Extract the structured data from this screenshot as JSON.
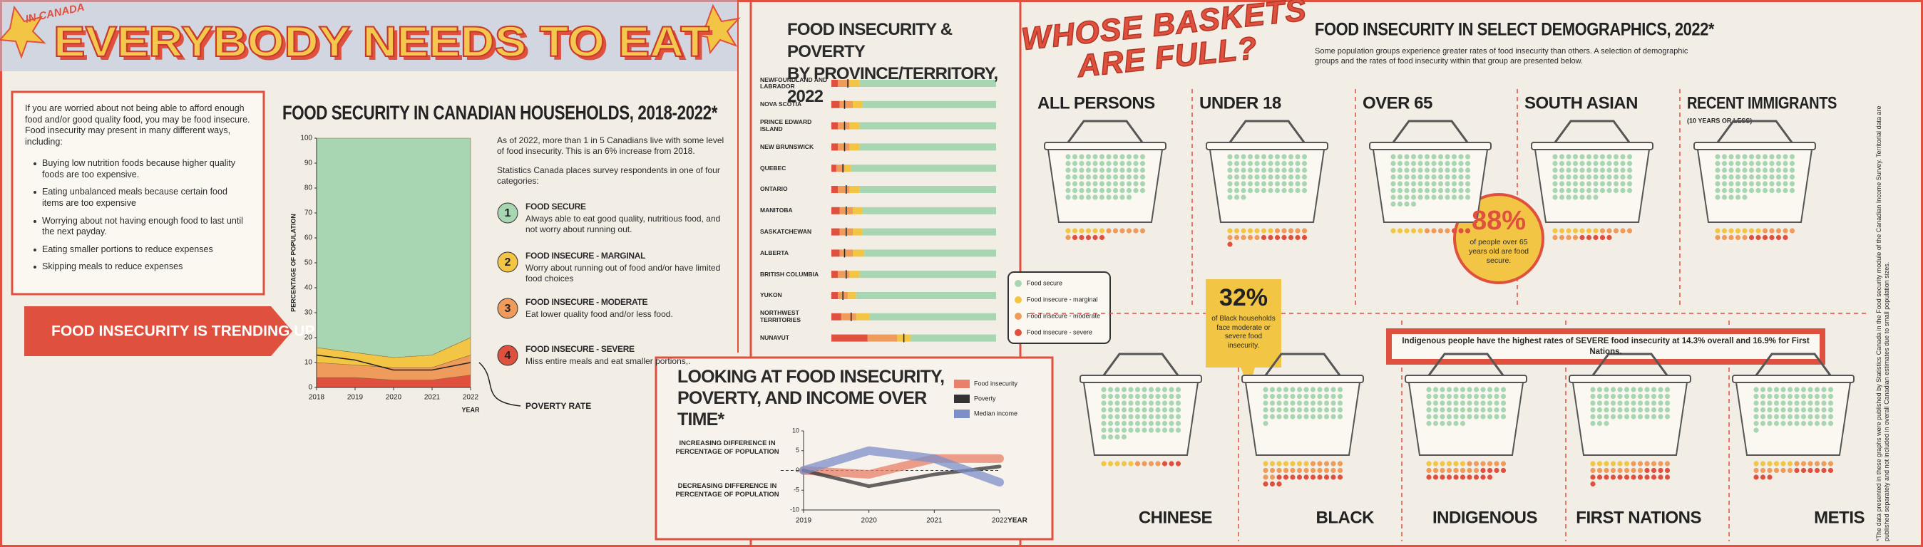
{
  "header": {
    "kicker": "IN CANADA",
    "title": "EVERYBODY NEEDS TO EAT"
  },
  "intro": {
    "text": "If you are worried about not being able to afford enough food and/or good quality food, you may be food insecure. Food insecurity may present in many different ways, including:",
    "bullets": [
      "Buying low nutrition foods because higher quality foods are too expensive.",
      "Eating unbalanced meals because certain food items are too expensive",
      "Worrying about not having enough food to last until the next payday.",
      "Eating smaller portions to reduce expenses",
      "Skipping meals to reduce expenses"
    ]
  },
  "banner": "FOOD INSECURITY IS TRENDING UP!",
  "categories_panel": {
    "intro": [
      "As of 2022, more than 1 in 5 Canadians live with some level of food insecurity. This is an 6% increase from 2018.",
      "Statistics Canada places survey respondents in one of four categories:"
    ],
    "items": [
      {
        "number": 1,
        "description": "Always able to eat good quality, nutritious food, and not worry about running out."
      },
      {
        "number": 2,
        "description": "Worry about running out of food and/or have limited food choices"
      },
      {
        "number": 3,
        "description": "Eat lower quality food and/or less food."
      },
      {
        "number": 4,
        "description": "Miss entire meals and eat smaller portions,."
      }
    ]
  },
  "demographics": {
    "heading": "WHOSE BASKETS\nARE FULL?",
    "title": "FOOD INSECURITY IN SELECT DEMOGRAPHICS,  2022*",
    "subtitle": "Some population groups experience greater rates of food insecurity than others. A selection of demographic groups and the rates of food insecurity within that group are presented below.",
    "callouts": [
      {
        "value": "88%",
        "text": "of people over 65 years old are food secure."
      },
      {
        "value": "32%",
        "text": "of Black households face moderate or severe food insecurity."
      }
    ],
    "banner": "Indigenous people have the highest rates of SEVERE food insecurity at 14.3% overall and 16.9% for First Nations."
  },
  "footnote": "*The data presented in these graphs were published by Statistics Canada in the Food security module of the Canadian Income Survey. Territorial data are published separately and not included in overall Canadian estimates due to small population sizes.",
  "chart_data": [
    {
      "type": "area",
      "stacked": true,
      "title": "FOOD SECURITY IN CANADIAN HOUSEHOLDS, 2018-2022*",
      "y_label": "PERCENTAGE OF POPULATION",
      "x_label": "YEAR",
      "x": [
        2018,
        2019,
        2020,
        2021,
        2022
      ],
      "xlim": [
        2018,
        2022
      ],
      "xticks": [
        2018,
        2019,
        2020,
        2021,
        2022
      ],
      "ylim": [
        0,
        100
      ],
      "yticks": [
        0,
        10,
        20,
        30,
        40,
        50,
        60,
        70,
        80,
        90,
        100
      ],
      "series": [
        {
          "name": "FOOD SECURE",
          "color": "#a9d6b2",
          "values": [
            84,
            86,
            88,
            87,
            80
          ]
        },
        {
          "name": "FOOD INSECURE - MARGINAL",
          "color": "#f3c544",
          "values": [
            6,
            5,
            4,
            5,
            7
          ]
        },
        {
          "name": "FOOD INSECURE - MODERATE",
          "color": "#ef9b5c",
          "values": [
            6,
            5,
            5,
            5,
            8
          ]
        },
        {
          "name": "FOOD INSECURE - SEVERE",
          "color": "#e0503f",
          "values": [
            4,
            4,
            3,
            3,
            5
          ]
        }
      ],
      "poverty": {
        "name": "POVERTY RATE",
        "color": "#222222",
        "values": [
          13,
          11,
          7,
          7,
          10
        ]
      }
    },
    {
      "type": "bar",
      "orientation": "horizontal",
      "stacked": true,
      "title": "FOOD INSECURITY & POVERTY\nBY PROVINCE/TERRITORY,  2022",
      "categories": [
        "NEWFOUNDLAND AND LABRADOR",
        "NOVA SCOTIA",
        "PRINCE EDWARD ISLAND",
        "NEW BRUNSWICK",
        "QUEBEC",
        "ONTARIO",
        "MANITOBA",
        "SASKATCHEWAN",
        "ALBERTA",
        "BRITISH COLUMBIA",
        "YUKON",
        "NORTHWEST TERRITORIES",
        "NUNAVUT"
      ],
      "xlim": [
        0,
        100
      ],
      "series": [
        {
          "name": "Food secure",
          "color": "#a9d6b2",
          "values": [
            83,
            81,
            83,
            83,
            88,
            83,
            81,
            81,
            80,
            83,
            85,
            77,
            52
          ]
        },
        {
          "name": "Food insecure - marginal",
          "color": "#f3c544",
          "values": [
            6,
            6,
            6,
            6,
            4,
            6,
            6,
            6,
            7,
            6,
            5,
            8,
            8
          ]
        },
        {
          "name": "Food insecure - moderate",
          "color": "#ef9b5c",
          "values": [
            7,
            8,
            7,
            7,
            5,
            7,
            8,
            8,
            8,
            7,
            6,
            9,
            18
          ]
        },
        {
          "name": "Food insecure - severe",
          "color": "#e0503f",
          "values": [
            4,
            5,
            4,
            4,
            3,
            4,
            5,
            5,
            5,
            4,
            4,
            6,
            22
          ]
        }
      ],
      "poverty_markers": {
        "color": "#222222",
        "values": [
          10,
          8,
          8,
          8,
          7,
          9,
          9,
          9,
          8,
          9,
          7,
          12,
          44
        ]
      }
    },
    {
      "type": "line",
      "title": "LOOKING AT FOOD INSECURITY,\nPOVERTY, AND INCOME OVER TIME*",
      "y_annotations": [
        "INCREASING DIFFERENCE IN PERCENTAGE OF POPULATION",
        "DECREASING DIFFERENCE IN PERCENTAGE OF POPULATION"
      ],
      "x_label": "YEAR",
      "x": [
        2019,
        2020,
        2021,
        2022
      ],
      "xlim": [
        2019,
        2022
      ],
      "xticks": [
        2019,
        2020,
        2021,
        2022
      ],
      "ylim": [
        -10,
        10
      ],
      "yticks": [
        -10,
        -5,
        0,
        5,
        10
      ],
      "series": [
        {
          "name": "Food insecurity",
          "color": "#e8806a",
          "values": [
            0,
            -1,
            3,
            3
          ]
        },
        {
          "name": "Poverty",
          "color": "#333333",
          "values": [
            0,
            -4,
            -1,
            1
          ]
        },
        {
          "name": "Median income",
          "color": "#7d8fc8",
          "values": [
            0,
            5,
            3,
            -3
          ]
        }
      ]
    },
    {
      "type": "waffle",
      "categories": [
        "ALL PERSONS",
        "UNDER 18",
        "OVER 65",
        "SOUTH ASIAN",
        "RECENT IMMIGRANTS",
        "CHINESE",
        "BLACK",
        "INDIGENOUS",
        "FIRST NATIONS",
        "METIS"
      ],
      "recent_immigrants_note": "(10 YEARS OR LESS)",
      "series": [
        {
          "color": "#a9d6b2",
          "values": [
            82,
            75,
            88,
            79,
            77,
            88,
            61,
            66,
            63,
            73
          ]
        },
        {
          "color": "#f3c544",
          "values": [
            6,
            7,
            5,
            7,
            7,
            5,
            7,
            6,
            6,
            6
          ]
        },
        {
          "color": "#ef9b5c",
          "values": [
            7,
            10,
            4,
            9,
            10,
            4,
            19,
            14,
            14,
            12
          ]
        },
        {
          "color": "#e0503f",
          "values": [
            5,
            8,
            3,
            5,
            6,
            3,
            13,
            14,
            17,
            9
          ]
        }
      ]
    }
  ]
}
